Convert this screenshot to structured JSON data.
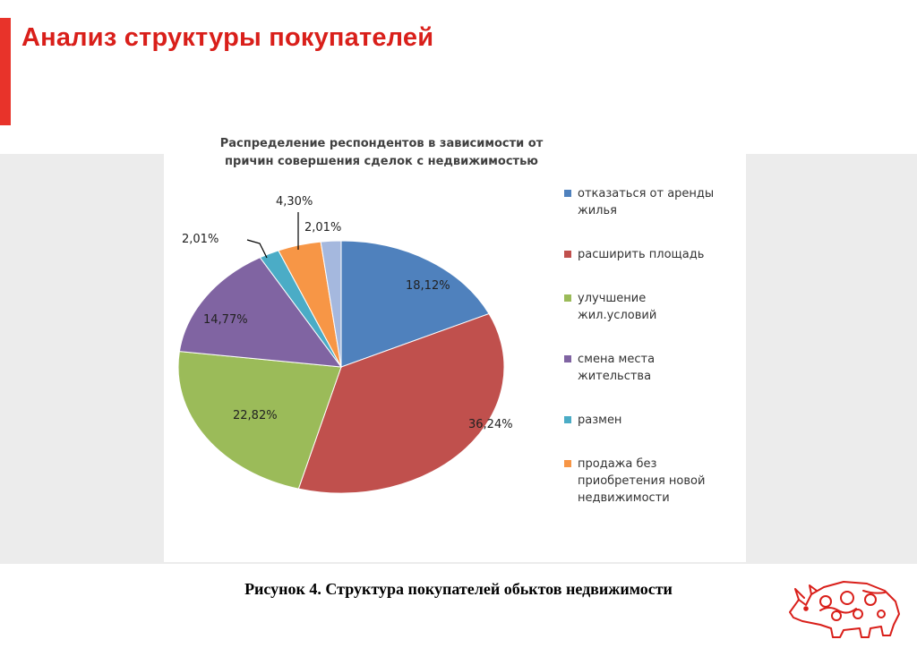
{
  "slide": {
    "title": "Анализ структуры покупателей",
    "caption": "Рисунок 4. Структура покупателей обьктов недвижимости",
    "accent_color": "#e8332a",
    "title_color": "#d91f1a",
    "logo_icon": "rhino-logo-icon"
  },
  "chart_data": {
    "type": "pie",
    "title": "Распределение респондентов в зависимости от причин совершения сделок с недвижимостью",
    "title_lines": [
      "Распределение респондентов в зависимости от",
      "причин совершения сделок с недвижимостью"
    ],
    "legend_position": "right",
    "slices": [
      {
        "label": "отказаться от аренды жилья",
        "legend_lines": [
          "отказаться от аренды",
          "жилья"
        ],
        "value": 18.12,
        "value_label": "18,12%",
        "color": "#4f81bd"
      },
      {
        "label": "расширить площадь",
        "legend_lines": [
          "расширить площадь"
        ],
        "value": 36.24,
        "value_label": "36,24%",
        "color": "#c0504d"
      },
      {
        "label": "улучшение жил.условий",
        "legend_lines": [
          "улучшение",
          "жил.условий"
        ],
        "value": 22.82,
        "value_label": "22,82%",
        "color": "#9bbb59"
      },
      {
        "label": "смена места жительства",
        "legend_lines": [
          "смена места",
          "жительства"
        ],
        "value": 14.77,
        "value_label": "14,77%",
        "color": "#8064a2"
      },
      {
        "label": "размен",
        "legend_lines": [
          "размен"
        ],
        "value": 2.01,
        "value_label": "2,01%",
        "color": "#4bacc6"
      },
      {
        "label": "продажа без приобретения новой недвижимости",
        "legend_lines": [
          "продажа без",
          "приобретения новой",
          "недвижимости"
        ],
        "value": 4.3,
        "value_label": "4,30%",
        "color": "#f79646"
      },
      {
        "label": "",
        "legend_lines": [],
        "value": 2.01,
        "value_label": "2,01%",
        "color": "#a5b8de"
      }
    ]
  }
}
